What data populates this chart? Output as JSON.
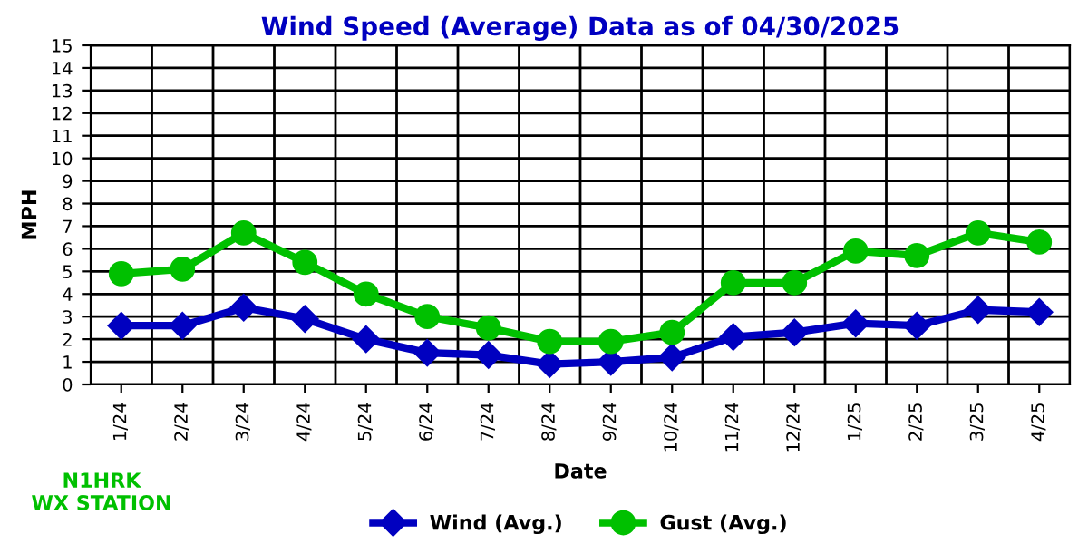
{
  "chart_data": {
    "type": "line",
    "title": "Wind Speed (Average) Data as of 04/30/2025",
    "xlabel": "Date",
    "ylabel": "MPH",
    "categories": [
      "1/24",
      "2/24",
      "3/24",
      "4/24",
      "5/24",
      "6/24",
      "7/24",
      "8/24",
      "9/24",
      "10/24",
      "11/24",
      "12/24",
      "1/25",
      "2/25",
      "3/25",
      "4/25"
    ],
    "series": [
      {
        "name": "Wind (Avg.)",
        "color": "#0000c0",
        "marker": "diamond",
        "values": [
          2.6,
          2.6,
          3.4,
          2.9,
          2.0,
          1.4,
          1.3,
          0.9,
          1.0,
          1.2,
          2.1,
          2.3,
          2.7,
          2.6,
          3.3,
          3.2
        ]
      },
      {
        "name": "Gust (Avg.)",
        "color": "#00c000",
        "marker": "circle",
        "values": [
          4.9,
          5.1,
          6.7,
          5.4,
          4.0,
          3.0,
          2.5,
          1.9,
          1.9,
          2.3,
          4.5,
          4.5,
          5.9,
          5.7,
          6.7,
          6.3
        ]
      }
    ],
    "ylim": [
      0,
      15
    ],
    "yticks": [
      0,
      1,
      2,
      3,
      4,
      5,
      6,
      7,
      8,
      9,
      10,
      11,
      12,
      13,
      14,
      15
    ],
    "grid": true,
    "legend": "bottom",
    "line_style": "solid",
    "annotations": [
      "N1HRK\nWX STATION"
    ]
  }
}
